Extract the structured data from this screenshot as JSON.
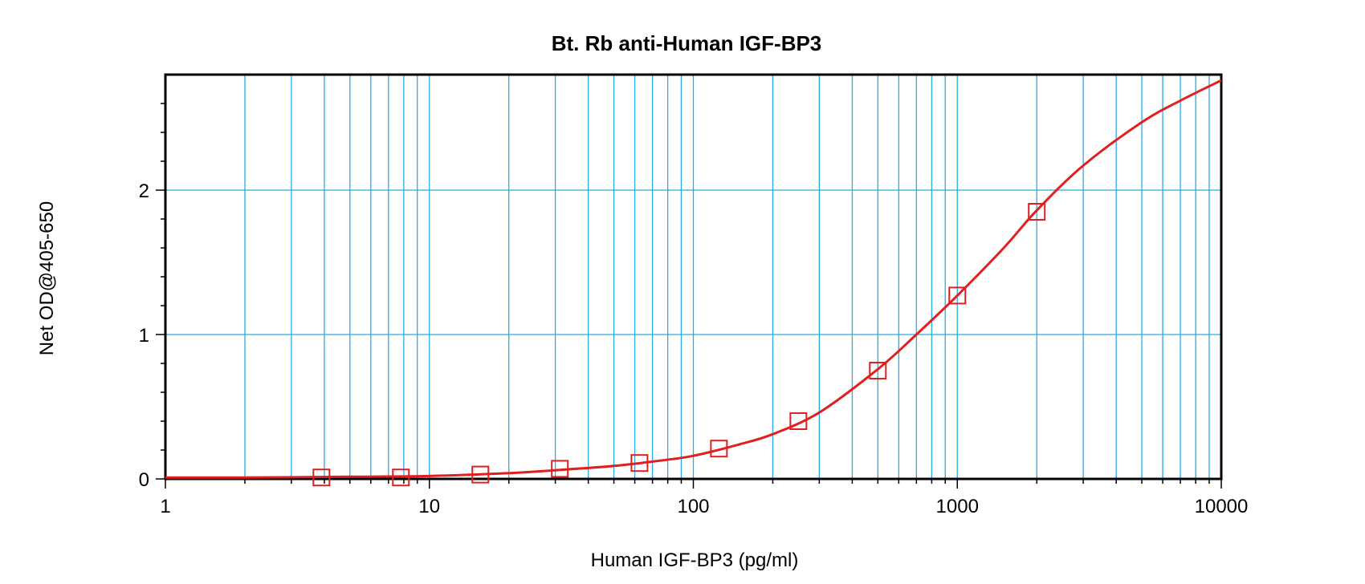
{
  "chart_data": {
    "type": "scatter",
    "title": "Bt. Rb anti-Human IGF-BP3",
    "xlabel": "Human IGF-BP3 (pg/ml)",
    "ylabel": "Net OD@405-650",
    "x_scale": "log",
    "xlim": [
      1,
      10000
    ],
    "ylim": [
      0,
      2.8
    ],
    "x_ticks": [
      1,
      10,
      100,
      1000,
      10000
    ],
    "x_tick_labels": [
      "1",
      "10",
      "100",
      "1000",
      "10000"
    ],
    "y_ticks": [
      0,
      1,
      2
    ],
    "y_tick_labels": [
      "0",
      "1",
      "2"
    ],
    "grid": true,
    "series": [
      {
        "kind": "points",
        "marker": "open-square",
        "color": "#e02020",
        "x": [
          3.9,
          7.8,
          15.6,
          31.2,
          62.5,
          125,
          250,
          500,
          1000,
          2000
        ],
        "y": [
          0.01,
          0.01,
          0.03,
          0.07,
          0.11,
          0.21,
          0.4,
          0.75,
          1.27,
          1.85
        ]
      },
      {
        "kind": "fit-curve",
        "color": "#e02020",
        "x": [
          1,
          2,
          5,
          10,
          20,
          30,
          50,
          70,
          100,
          150,
          200,
          300,
          500,
          700,
          1000,
          1500,
          2000,
          3000,
          5000,
          7000,
          10000
        ],
        "y": [
          0.01,
          0.01,
          0.015,
          0.02,
          0.04,
          0.06,
          0.09,
          0.12,
          0.16,
          0.24,
          0.31,
          0.46,
          0.76,
          1.0,
          1.27,
          1.6,
          1.86,
          2.17,
          2.47,
          2.62,
          2.76
        ]
      }
    ],
    "colors": {
      "grid": "#29abe2",
      "curve": "#e02020",
      "frame": "#000000"
    }
  }
}
